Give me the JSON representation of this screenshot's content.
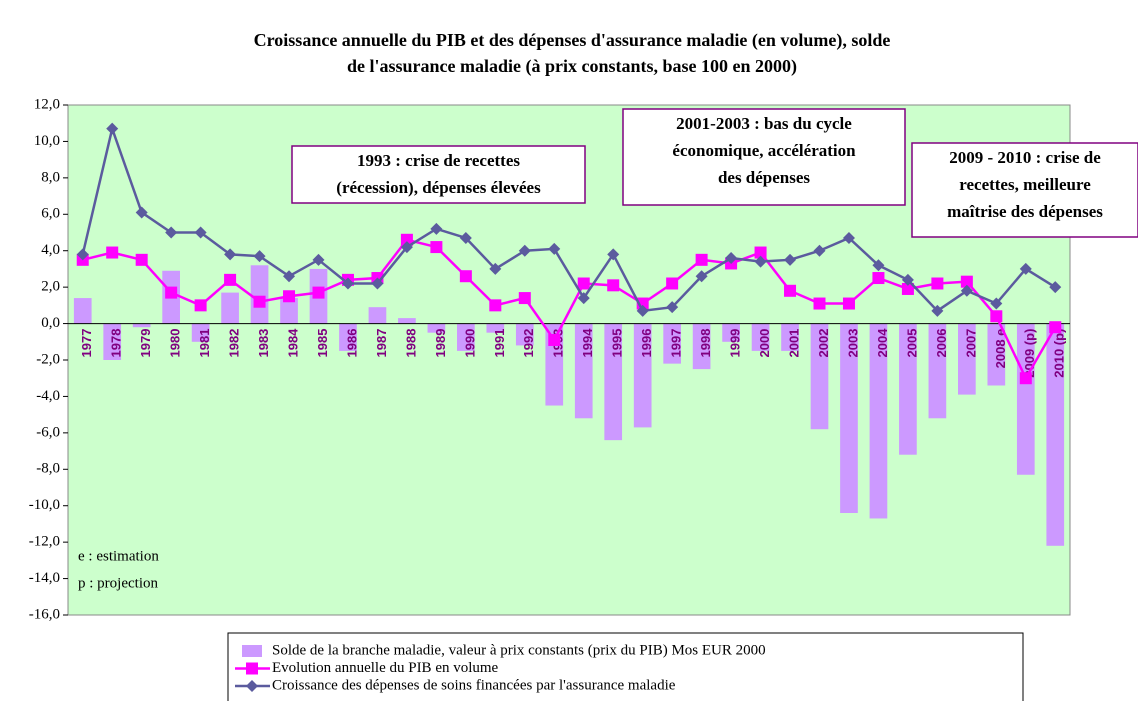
{
  "chart_data": {
    "type": "bar-line",
    "title": [
      "Croissance annuelle du PIB et des dépenses d'assurance maladie (en volume), solde",
      "de l'assurance maladie (à prix constants, base 100 en 2000)"
    ],
    "categories": [
      "1977",
      "1978",
      "1979",
      "1980",
      "1981",
      "1982",
      "1983",
      "1984",
      "1985",
      "1986",
      "1987",
      "1988",
      "1989",
      "1990",
      "1991",
      "1992",
      "1993",
      "1994",
      "1995",
      "1996",
      "1997",
      "1998",
      "1999",
      "2000",
      "2001",
      "2002",
      "2003",
      "2004",
      "2005",
      "2006",
      "2007",
      "2008 e",
      "2009 (p)",
      "2010 (p)"
    ],
    "series": [
      {
        "name": "Solde de la branche maladie, valeur à prix constants (prix du PIB) Mos EUR 2000",
        "kind": "bar",
        "color": "#cc99ff",
        "values": [
          1.4,
          -2.0,
          -0.2,
          2.9,
          -1.0,
          1.7,
          3.2,
          1.4,
          3.0,
          -1.5,
          0.9,
          0.3,
          -0.5,
          -1.5,
          -0.5,
          -1.2,
          -4.5,
          -5.2,
          -6.4,
          -5.7,
          -2.2,
          -2.5,
          -1.0,
          -1.5,
          -1.5,
          -5.8,
          -10.4,
          -10.7,
          -7.2,
          -5.2,
          -3.9,
          -3.4,
          -8.3,
          -12.2
        ]
      },
      {
        "name": "Evolution annuelle du PIB en volume",
        "kind": "line",
        "marker": "square",
        "color": "#ff00ff",
        "values": [
          3.5,
          3.9,
          3.5,
          1.7,
          1.0,
          2.4,
          1.2,
          1.5,
          1.7,
          2.4,
          2.5,
          4.6,
          4.2,
          2.6,
          1.0,
          1.4,
          -0.9,
          2.2,
          2.1,
          1.1,
          2.2,
          3.5,
          3.3,
          3.9,
          1.8,
          1.1,
          1.1,
          2.5,
          1.9,
          2.2,
          2.3,
          0.4,
          -3.0,
          -0.2
        ]
      },
      {
        "name": "Croissance des dépenses de soins financées par l'assurance maladie",
        "kind": "line",
        "marker": "diamond",
        "color": "#5b5b9e",
        "values": [
          3.8,
          10.7,
          6.1,
          5.0,
          5.0,
          3.8,
          3.7,
          2.6,
          3.5,
          2.2,
          2.2,
          4.2,
          5.2,
          4.7,
          3.0,
          4.0,
          4.1,
          1.4,
          3.8,
          0.7,
          0.9,
          2.6,
          3.6,
          3.4,
          3.5,
          4.0,
          4.7,
          3.2,
          2.4,
          0.7,
          1.8,
          1.1,
          3.0,
          2.0
        ]
      }
    ],
    "ylim": [
      -16,
      12
    ],
    "yticks": [
      {
        "value": -16,
        "label": "-16,0"
      },
      {
        "value": -14,
        "label": "-14,0"
      },
      {
        "value": -12,
        "label": "-12,0"
      },
      {
        "value": -10,
        "label": "-10,0"
      },
      {
        "value": -8,
        "label": "-8,0"
      },
      {
        "value": -6,
        "label": "-6,0"
      },
      {
        "value": -4,
        "label": "-4,0"
      },
      {
        "value": -2,
        "label": "-2,0"
      },
      {
        "value": 0,
        "label": "0,0"
      },
      {
        "value": 2,
        "label": "2,0"
      },
      {
        "value": 4,
        "label": "4,0"
      },
      {
        "value": 6,
        "label": "6,0"
      },
      {
        "value": 8,
        "label": "8,0"
      },
      {
        "value": 10,
        "label": "10,0"
      },
      {
        "value": 12,
        "label": "12,0"
      }
    ],
    "annotations": [
      [
        "1993 : crise de recettes",
        "(récession), dépenses élevées"
      ],
      [
        "2001-2003 : bas du cycle",
        "économique, accélération",
        "des dépenses"
      ],
      [
        "2009 - 2010 : crise de",
        "recettes, meilleure",
        "maîtrise des dépenses"
      ]
    ],
    "notes": [
      "e : estimation",
      "p : projection"
    ]
  }
}
